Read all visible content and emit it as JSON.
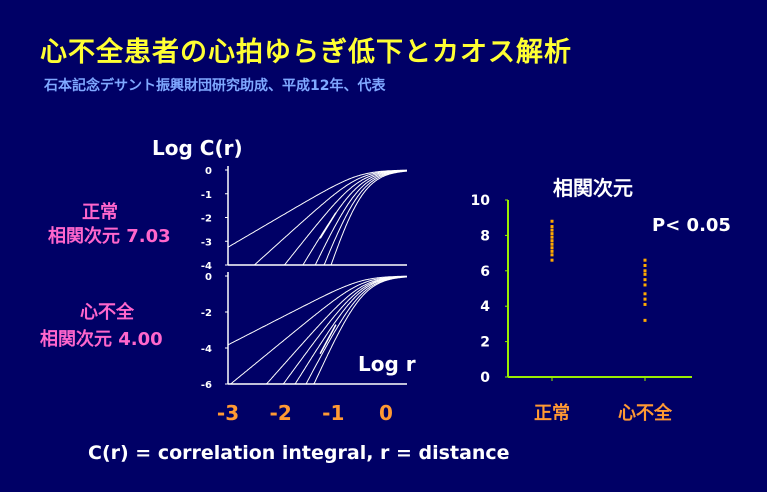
{
  "title": "心不全患者の心拍ゆらぎ低下とカオス解析",
  "subtitle": "石本記念デサント振興財団研究助成、平成12年、代表",
  "footer": "C(r) = correlation integral, r = distance",
  "colors": {
    "background": "#000066",
    "title": "#ffff33",
    "subtitle": "#7fa8ff",
    "group_label": "#ff66cc",
    "axis_orange": "#ff9933",
    "scatter_axis": "#99ee00",
    "points": "#ffaa00"
  },
  "chart_data": [
    {
      "type": "line",
      "panel": "correlation-integral-normal",
      "ylabel": "Log C(r)",
      "group_label": "正常",
      "dimension_label": "相関次元 7.03",
      "yticks": [
        "0",
        "-1",
        "-2",
        "-3",
        "-4"
      ],
      "ylim": [
        -4,
        0
      ],
      "xlim": [
        -3,
        0.4
      ],
      "series_count": 7,
      "saturation_logr": -0.5,
      "slopes": [
        1.3,
        2.0,
        2.8,
        3.7,
        4.7,
        5.8,
        7.03
      ]
    },
    {
      "type": "line",
      "panel": "correlation-integral-heart-failure",
      "group_label": "心不全",
      "dimension_label": "相関次元 4.00",
      "xlabel": "Log r",
      "yticks": [
        "0",
        "-2",
        "-4",
        "-6"
      ],
      "xticks": [
        "-3",
        "-2",
        "-1",
        "0"
      ],
      "ylim": [
        -6,
        0
      ],
      "xlim": [
        -3,
        0.4
      ],
      "series_count": 7,
      "saturation_logr": -0.45,
      "slopes": [
        1.5,
        2.4,
        3.3,
        4.0,
        4.7,
        5.6,
        6.5
      ]
    },
    {
      "type": "scatter",
      "panel": "correlation-dimension",
      "title": "相関次元",
      "annotation": "P< 0.05",
      "categories": [
        "正常",
        "心不全"
      ],
      "yticks": [
        "0",
        "2",
        "4",
        "6",
        "8",
        "10"
      ],
      "ylim": [
        0,
        10
      ],
      "series": [
        {
          "category": "正常",
          "values": [
            6.6,
            6.9,
            7.1,
            7.3,
            7.5,
            7.7,
            7.9,
            8.1,
            8.3,
            8.5,
            8.8
          ]
        },
        {
          "category": "心不全",
          "values": [
            3.2,
            4.1,
            4.4,
            4.7,
            5.2,
            5.5,
            5.8,
            6.0,
            6.3,
            6.6
          ]
        }
      ]
    }
  ]
}
